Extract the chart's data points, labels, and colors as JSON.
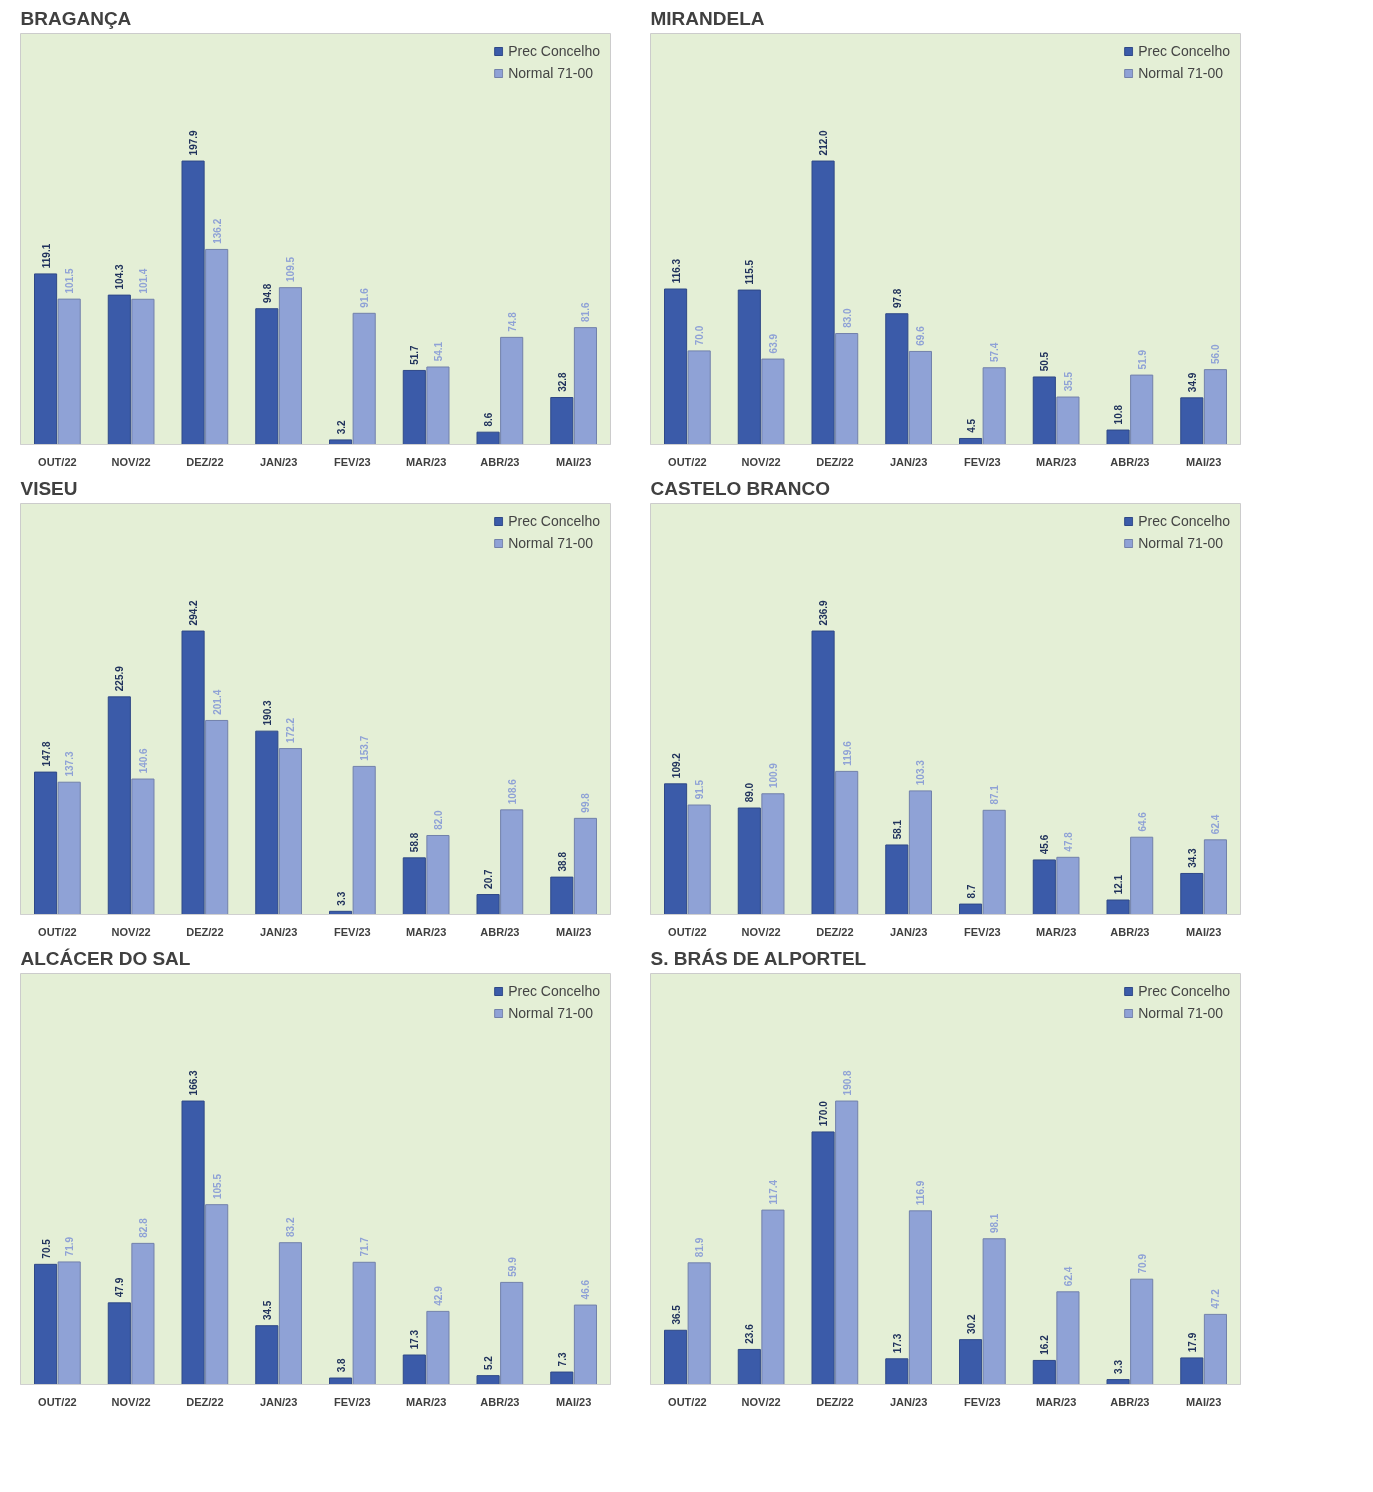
{
  "chart_data": [
    {
      "type": "bar",
      "title": "BRAGANÇA",
      "categories": [
        "OUT/22",
        "NOV/22",
        "DEZ/22",
        "JAN/23",
        "FEV/23",
        "MAR/23",
        "ABR/23",
        "MAI/23"
      ],
      "tick_labels": "x",
      "legend": "top right",
      "series": [
        {
          "name": "Prec Concelho",
          "color": "#3b5ba9",
          "values": [
            119.1,
            104.3,
            197.9,
            94.8,
            3.2,
            51.7,
            8.6,
            32.8
          ],
          "value_labels": [
            "119.1",
            "104.3",
            "197.9",
            "94.8",
            "3.2",
            "51.7",
            "8.6",
            "32.8"
          ]
        },
        {
          "name": "Normal 71-00",
          "color": "#8fa2d6",
          "values": [
            101.5,
            101.4,
            136.2,
            109.5,
            91.6,
            54.1,
            74.8,
            81.6
          ],
          "value_labels": [
            "101.5",
            "101.4",
            "136.2",
            "109.5",
            "91.6",
            "54.1",
            "74.8",
            "81.6"
          ]
        }
      ]
    },
    {
      "type": "bar",
      "title": "MIRANDELA",
      "categories": [
        "OUT/22",
        "NOV/22",
        "DEZ/22",
        "JAN/23",
        "FEV/23",
        "MAR/23",
        "ABR/23",
        "MAI/23"
      ],
      "tick_labels": "x",
      "legend": "top right",
      "series": [
        {
          "name": "Prec Concelho",
          "color": "#3b5ba9",
          "values": [
            116.3,
            115.5,
            212.0,
            97.8,
            4.5,
            50.5,
            10.8,
            34.9
          ],
          "value_labels": [
            "116.3",
            "115.5",
            "212.0",
            "97.8",
            "4.5",
            "50.5",
            "10.8",
            "34.9"
          ]
        },
        {
          "name": "Normal 71-00",
          "color": "#8fa2d6",
          "values": [
            70.0,
            63.9,
            83.0,
            69.6,
            57.4,
            35.5,
            51.9,
            56.0
          ],
          "value_labels": [
            "70.0",
            "63.9",
            "83.0",
            "69.6",
            "57.4",
            "35.5",
            "51.9",
            "56.0"
          ]
        }
      ]
    },
    {
      "type": "bar",
      "title": "VISEU",
      "categories": [
        "OUT/22",
        "NOV/22",
        "DEZ/22",
        "JAN/23",
        "FEV/23",
        "MAR/23",
        "ABR/23",
        "MAI/23"
      ],
      "tick_labels": "x",
      "legend": "top right",
      "series": [
        {
          "name": "Prec Concelho",
          "color": "#3b5ba9",
          "values": [
            147.8,
            225.9,
            294.2,
            190.3,
            3.3,
            58.8,
            20.7,
            38.8
          ],
          "value_labels": [
            "147.8",
            "225.9",
            "294.2",
            "190.3",
            "3.3",
            "58.8",
            "20.7",
            "38.8"
          ]
        },
        {
          "name": "Normal 71-00",
          "color": "#8fa2d6",
          "values": [
            137.3,
            140.6,
            201.4,
            172.2,
            153.7,
            82.0,
            108.6,
            99.8
          ],
          "value_labels": [
            "137.3",
            "140.6",
            "201.4",
            "172.2",
            "153.7",
            "82.0",
            "108.6",
            "99.8"
          ]
        }
      ]
    },
    {
      "type": "bar",
      "title": "CASTELO BRANCO",
      "categories": [
        "OUT/22",
        "NOV/22",
        "DEZ/22",
        "JAN/23",
        "FEV/23",
        "MAR/23",
        "ABR/23",
        "MAI/23"
      ],
      "tick_labels": "x",
      "legend": "top right",
      "series": [
        {
          "name": "Prec Concelho",
          "color": "#3b5ba9",
          "values": [
            109.2,
            89.0,
            236.9,
            58.1,
            8.7,
            45.6,
            12.1,
            34.3
          ],
          "value_labels": [
            "109.2",
            "89.0",
            "236.9",
            "58.1",
            "8.7",
            "45.6",
            "12.1",
            "34.3"
          ]
        },
        {
          "name": "Normal 71-00",
          "color": "#8fa2d6",
          "values": [
            91.5,
            100.9,
            119.6,
            103.3,
            87.1,
            47.8,
            64.6,
            62.4
          ],
          "value_labels": [
            "91.5",
            "100.9",
            "119.6",
            "103.3",
            "87.1",
            "47.8",
            "64.6",
            "62.4"
          ]
        }
      ]
    },
    {
      "type": "bar",
      "title": "ALCÁCER DO SAL",
      "categories": [
        "OUT/22",
        "NOV/22",
        "DEZ/22",
        "JAN/23",
        "FEV/23",
        "MAR/23",
        "ABR/23",
        "MAI/23"
      ],
      "tick_labels": "x",
      "legend": "top right",
      "series": [
        {
          "name": "Prec Concelho",
          "color": "#3b5ba9",
          "values": [
            70.5,
            47.9,
            166.3,
            34.5,
            3.8,
            17.3,
            5.2,
            7.3
          ],
          "value_labels": [
            "70.5",
            "47.9",
            "166.3",
            "34.5",
            "3.8",
            "17.3",
            "5.2",
            "7.3"
          ]
        },
        {
          "name": "Normal 71-00",
          "color": "#8fa2d6",
          "values": [
            71.9,
            82.8,
            105.5,
            83.2,
            71.7,
            42.9,
            59.9,
            46.6
          ],
          "value_labels": [
            "71.9",
            "82.8",
            "105.5",
            "83.2",
            "71.7",
            "42.9",
            "59.9",
            "46.6"
          ]
        }
      ]
    },
    {
      "type": "bar",
      "title": "S. BRÁS DE ALPORTEL",
      "categories": [
        "OUT/22",
        "NOV/22",
        "DEZ/22",
        "JAN/23",
        "FEV/23",
        "MAR/23",
        "ABR/23",
        "MAI/23"
      ],
      "tick_labels": "x",
      "legend": "top right",
      "series": [
        {
          "name": "Prec Concelho",
          "color": "#3b5ba9",
          "values": [
            36.5,
            23.6,
            170.0,
            17.3,
            30.2,
            16.2,
            3.3,
            17.9
          ],
          "value_labels": [
            "36.5",
            "23.6",
            "170.0",
            "17.3",
            "30.2",
            "16.2",
            "3.3",
            "17.9"
          ]
        },
        {
          "name": "Normal 71-00",
          "color": "#8fa2d6",
          "values": [
            81.9,
            117.4,
            190.8,
            116.9,
            98.1,
            62.4,
            70.9,
            47.2
          ],
          "value_labels": [
            "81.9",
            "117.4",
            "190.8",
            "116.9",
            "98.1",
            "62.4",
            "70.9",
            "47.2"
          ]
        }
      ]
    }
  ]
}
